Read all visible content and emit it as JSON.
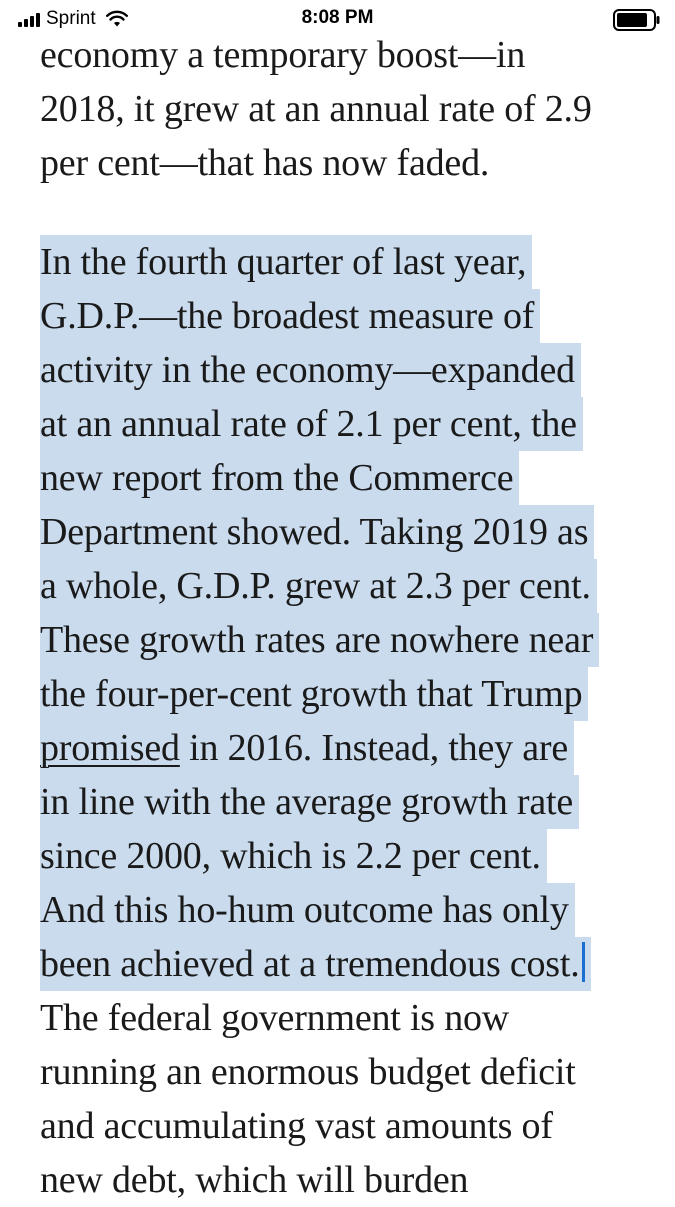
{
  "status_bar": {
    "carrier": "Sprint",
    "time": "8:08 PM",
    "icons": [
      "signal-icon",
      "wifi-icon",
      "battery-icon"
    ]
  },
  "article": {
    "para1": [
      "economy a temporary boost—in",
      "2018, it grew at an annual rate of 2.9",
      "per cent—that has now faded."
    ],
    "para2": {
      "lines": [
        "In the fourth quarter of last year,",
        "G.D.P.—the broadest measure of",
        "activity in the economy—expanded",
        "at an annual rate of 2.1 per cent, the",
        "new report from the Commerce",
        "Department showed. Taking 2019 as",
        "a whole, G.D.P. grew at 2.3 per cent.",
        "These growth rates are nowhere near",
        "the four-per-cent growth that Trump"
      ],
      "link_text": "promised",
      "link_line_rest": " in 2016. Instead, they are",
      "lines_after": [
        "in line with the average growth rate",
        "since 2000, which is 2.2 per cent.",
        "And this ho-hum outcome has only",
        "been achieved at a tremendous cost."
      ]
    },
    "para3": [
      "The federal government is now",
      "running an enormous budget deficit",
      "and accumulating vast amounts of",
      "new debt, which will burden"
    ]
  },
  "colors": {
    "selection": "#c9dbed",
    "caret": "#1a6fd1",
    "text": "#1a1a1a"
  }
}
